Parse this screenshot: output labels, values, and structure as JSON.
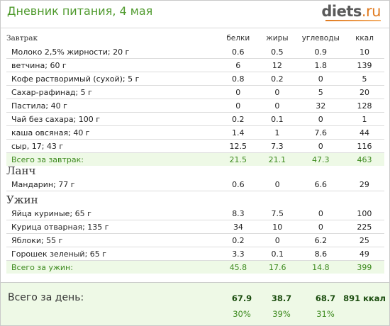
{
  "title": "Дневник питания, 4 мая",
  "logo": {
    "name": "diets",
    "tld": ".ru"
  },
  "columns": {
    "protein": "белки",
    "fat": "жиры",
    "carbs": "углеводы",
    "kcal": "ккал"
  },
  "breakfast": {
    "title": "Завтрак",
    "items": [
      {
        "name": "Молоко 2,5% жирности; 20 г",
        "protein": "0.6",
        "fat": "0.5",
        "carbs": "0.9",
        "kcal": "10"
      },
      {
        "name": "ветчина; 60 г",
        "protein": "6",
        "fat": "12",
        "carbs": "1.8",
        "kcal": "139"
      },
      {
        "name": "Кофе растворимый (сухой); 5 г",
        "protein": "0.8",
        "fat": "0.2",
        "carbs": "0",
        "kcal": "5"
      },
      {
        "name": "Сахар-рафинад; 5 г",
        "protein": "0",
        "fat": "0",
        "carbs": "5",
        "kcal": "20"
      },
      {
        "name": "Пастила; 40 г",
        "protein": "0",
        "fat": "0",
        "carbs": "32",
        "kcal": "128"
      },
      {
        "name": "Чай без сахара; 100 г",
        "protein": "0.2",
        "fat": "0.1",
        "carbs": "0",
        "kcal": "1"
      },
      {
        "name": "каша овсяная; 40 г",
        "protein": "1.4",
        "fat": "1",
        "carbs": "7.6",
        "kcal": "44"
      },
      {
        "name": "сыр, 17; 43 г",
        "protein": "12.5",
        "fat": "7.3",
        "carbs": "0",
        "kcal": "116"
      }
    ],
    "total": {
      "name": "Всего за завтрак:",
      "protein": "21.5",
      "fat": "21.1",
      "carbs": "47.3",
      "kcal": "463"
    }
  },
  "lunch": {
    "title": "Ланч",
    "items": [
      {
        "name": "Мандарин; 77 г",
        "protein": "0.6",
        "fat": "0",
        "carbs": "6.6",
        "kcal": "29"
      }
    ]
  },
  "dinner": {
    "title": "Ужин",
    "items": [
      {
        "name": "Яйца куриные; 65 г",
        "protein": "8.3",
        "fat": "7.5",
        "carbs": "0",
        "kcal": "100"
      },
      {
        "name": "Курица отварная; 135 г",
        "protein": "34",
        "fat": "10",
        "carbs": "0",
        "kcal": "225"
      },
      {
        "name": "Яблоки; 55 г",
        "protein": "0.2",
        "fat": "0",
        "carbs": "6.2",
        "kcal": "25"
      },
      {
        "name": "Горошек зеленый; 65 г",
        "protein": "3.3",
        "fat": "0.1",
        "carbs": "8.6",
        "kcal": "49"
      }
    ],
    "total": {
      "name": "Всего за ужин:",
      "protein": "45.8",
      "fat": "17.6",
      "carbs": "14.8",
      "kcal": "399"
    }
  },
  "day": {
    "label": "Всего за день:",
    "protein": "67.9",
    "fat": "38.7",
    "carbs": "68.7",
    "kcal": "891 ккал",
    "protein_pct": "30%",
    "fat_pct": "39%",
    "carbs_pct": "31%"
  },
  "colors": {
    "title": "#4f9a2d",
    "total_text": "#3d8a1e",
    "total_bg": "#eef9e6",
    "logo_tld": "#e07a1f"
  }
}
